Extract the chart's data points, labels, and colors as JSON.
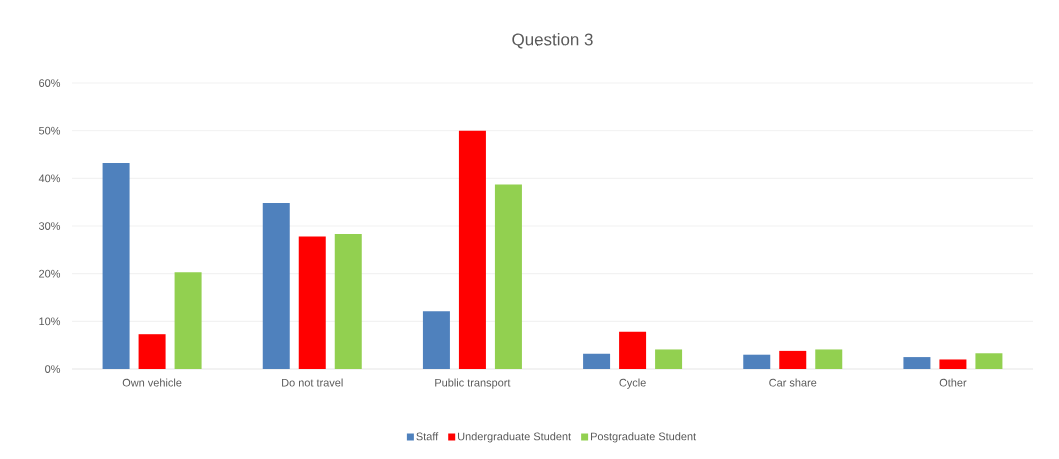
{
  "chart_data": {
    "type": "bar",
    "title": "Question 3",
    "categories": [
      "Own vehicle",
      "Do not travel",
      "Public transport",
      "Cycle",
      "Car share",
      "Other"
    ],
    "series": [
      {
        "name": "Staff",
        "color": "#4f81bd",
        "values": [
          43.2,
          34.8,
          12.1,
          3.2,
          3.0,
          2.5
        ]
      },
      {
        "name": "Undergraduate Student",
        "color": "#ff0000",
        "values": [
          7.3,
          27.8,
          50.0,
          7.8,
          3.8,
          2.0
        ]
      },
      {
        "name": "Postgraduate Student",
        "color": "#92d050",
        "values": [
          20.3,
          28.3,
          38.7,
          4.1,
          4.1,
          3.3
        ]
      }
    ],
    "ylim": [
      0,
      60
    ],
    "yticks": [
      {
        "value": 0,
        "label": "0%"
      },
      {
        "value": 10,
        "label": "10%"
      },
      {
        "value": 20,
        "label": "20%"
      },
      {
        "value": 30,
        "label": "30%"
      },
      {
        "value": 40,
        "label": "40%"
      },
      {
        "value": 50,
        "label": "50%"
      },
      {
        "value": 60,
        "label": "60%"
      }
    ],
    "grid": "y",
    "legend": "bottom"
  }
}
